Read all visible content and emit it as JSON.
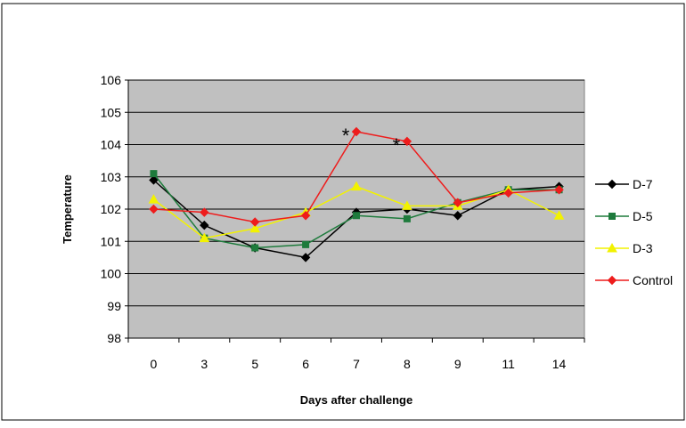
{
  "chart_data": {
    "type": "line",
    "xlabel": "Days after challenge",
    "ylabel": "Temperature",
    "categories": [
      "0",
      "3",
      "5",
      "6",
      "7",
      "8",
      "9",
      "11",
      "14"
    ],
    "ylim": [
      98,
      106
    ],
    "yticks": [
      98,
      99,
      100,
      101,
      102,
      103,
      104,
      105,
      106
    ],
    "grid": "horizontal",
    "legend_position": "right",
    "plot_background": "#c0c0c0",
    "series": [
      {
        "name": "D-7",
        "color": "#000000",
        "marker": "diamond",
        "values": [
          102.9,
          101.5,
          100.8,
          100.5,
          101.9,
          102.0,
          101.8,
          102.6,
          102.7
        ]
      },
      {
        "name": "D-5",
        "color": "#1e7b3c",
        "marker": "square",
        "values": [
          103.1,
          101.1,
          100.8,
          100.9,
          101.8,
          101.7,
          102.2,
          102.6,
          102.6
        ]
      },
      {
        "name": "D-3",
        "color": "#f2f200",
        "marker": "triangle",
        "values": [
          102.3,
          101.1,
          101.4,
          101.9,
          102.7,
          102.1,
          102.1,
          102.6,
          101.8
        ]
      },
      {
        "name": "Control",
        "color": "#ee1c1c",
        "marker": "diamond",
        "values": [
          102.0,
          101.9,
          101.6,
          101.8,
          104.4,
          104.1,
          102.2,
          102.5,
          102.6
        ]
      }
    ],
    "annotations": [
      {
        "text": "*",
        "category_index": 4,
        "y": 104.4
      },
      {
        "text": "*",
        "category_index": 5,
        "y": 104.1
      }
    ]
  }
}
